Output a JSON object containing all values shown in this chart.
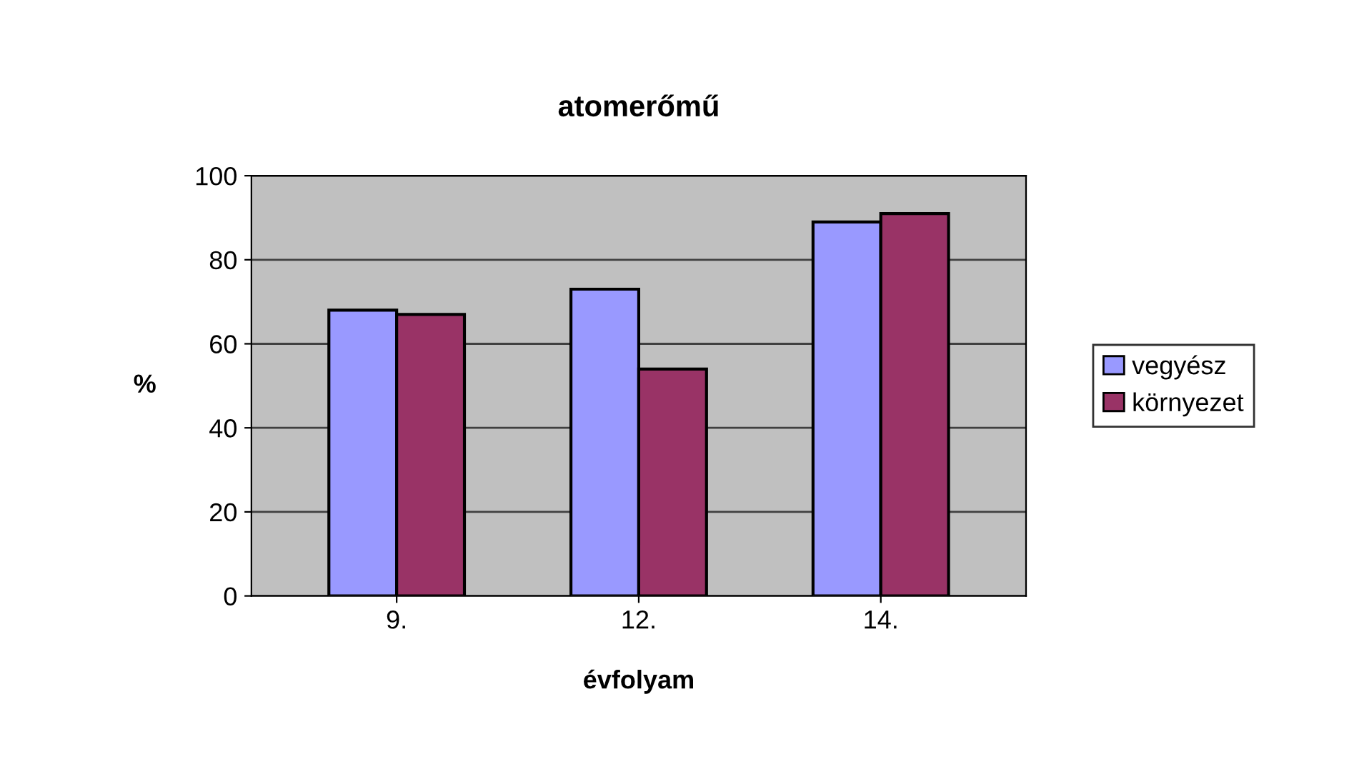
{
  "chart_data": {
    "type": "bar",
    "title": "atomerőmű",
    "xlabel": "évfolyam",
    "ylabel": "%",
    "categories": [
      "9.",
      "12.",
      "14."
    ],
    "series": [
      {
        "name": "vegyész",
        "color": "#9999ff",
        "values": [
          68,
          73,
          89
        ]
      },
      {
        "name": "környezet",
        "color": "#993366",
        "values": [
          67,
          54,
          91
        ]
      }
    ],
    "ylim": [
      0,
      100
    ],
    "yticks": [
      0,
      20,
      40,
      60,
      80,
      100
    ],
    "grid": "y",
    "legend": "right"
  }
}
